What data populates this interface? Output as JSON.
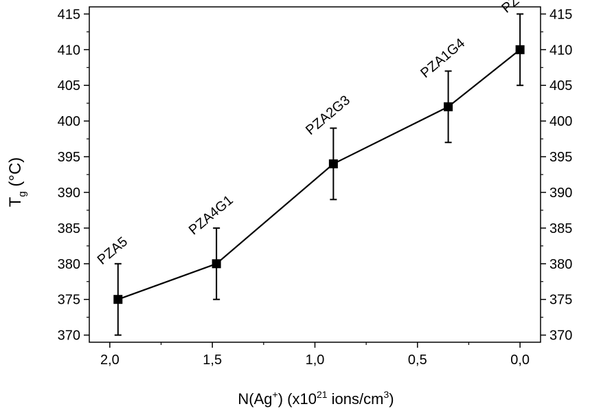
{
  "chart_data": {
    "type": "line",
    "title": "",
    "x_axis": {
      "label_main": "N(Ag",
      "label_main_sup": "+",
      "label_mid": ") (x10",
      "label_mid_sup": "21",
      "label_end": " ions/cm",
      "label_end_sup": "3",
      "label_close": ")",
      "range": [
        2.1,
        -0.1
      ],
      "reversed": true,
      "ticks": [
        {
          "value": 2.0,
          "label": "2,0"
        },
        {
          "value": 1.5,
          "label": "1,5"
        },
        {
          "value": 1.0,
          "label": "1,0"
        },
        {
          "value": 0.5,
          "label": "0,5"
        },
        {
          "value": 0.0,
          "label": "0,0"
        }
      ]
    },
    "y_axis": {
      "label_main": "T",
      "label_sub": "g",
      "label_unit": " (°C)",
      "range": [
        369,
        416
      ],
      "ticks": [
        {
          "value": 370,
          "label": "370"
        },
        {
          "value": 375,
          "label": "375"
        },
        {
          "value": 380,
          "label": "380"
        },
        {
          "value": 385,
          "label": "385"
        },
        {
          "value": 390,
          "label": "390"
        },
        {
          "value": 395,
          "label": "395"
        },
        {
          "value": 400,
          "label": "400"
        },
        {
          "value": 405,
          "label": "405"
        },
        {
          "value": 410,
          "label": "410"
        },
        {
          "value": 415,
          "label": "415"
        }
      ],
      "mirrored_right": true
    },
    "grid": false,
    "series": [
      {
        "marker": "square",
        "color": "#000000",
        "points": [
          {
            "x": 1.96,
            "y": 375,
            "err": 5,
            "label": "PZA5"
          },
          {
            "x": 1.48,
            "y": 380,
            "err": 5,
            "label": "PZA4G1"
          },
          {
            "x": 0.91,
            "y": 394,
            "err": 5,
            "label": "PZA2G3"
          },
          {
            "x": 0.35,
            "y": 402,
            "err": 5,
            "label": "PZA1G4"
          },
          {
            "x": 0.0,
            "y": 410,
            "err": 5,
            "label": "PZG"
          }
        ]
      }
    ]
  }
}
